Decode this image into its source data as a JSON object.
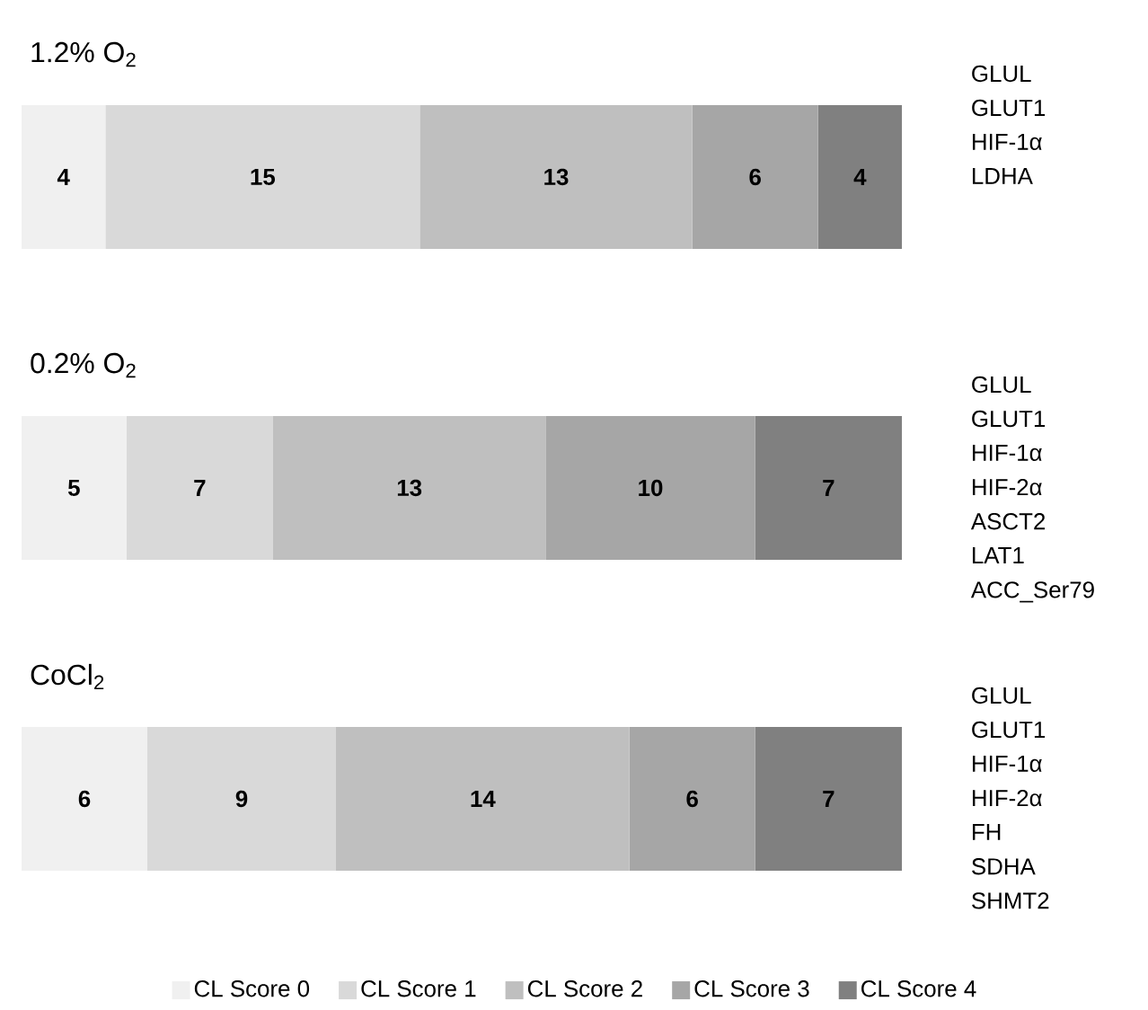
{
  "chart_data": [
    {
      "type": "bar",
      "orientation": "horizontal",
      "stacked": true,
      "title": "1.2% O$_{2}$",
      "categories": [
        null
      ],
      "tick_labels": false,
      "data_labels": true,
      "series": [
        {
          "color": "#f0f0f0",
          "values": [
            4
          ]
        },
        {
          "color": "#d9d9d9",
          "values": [
            15
          ]
        },
        {
          "color": "#bfbfbf",
          "values": [
            13
          ]
        },
        {
          "color": "#a6a6a6",
          "values": [
            6
          ]
        },
        {
          "color": "#808080",
          "values": [
            4
          ]
        }
      ],
      "annotations": [
        "GLUL",
        "GLUT1",
        "HIF-1α",
        "LDHA"
      ]
    },
    {
      "type": "bar",
      "orientation": "horizontal",
      "stacked": true,
      "title": "0.2% O$_{2}$",
      "categories": [
        null
      ],
      "tick_labels": false,
      "data_labels": true,
      "series": [
        {
          "color": "#f0f0f0",
          "values": [
            5
          ]
        },
        {
          "color": "#d9d9d9",
          "values": [
            7
          ]
        },
        {
          "color": "#bfbfbf",
          "values": [
            13
          ]
        },
        {
          "color": "#a6a6a6",
          "values": [
            10
          ]
        },
        {
          "color": "#808080",
          "values": [
            7
          ]
        }
      ],
      "annotations": [
        "GLUL",
        "GLUT1",
        "HIF-1α",
        "HIF-2α",
        "ASCT2",
        "LAT1",
        "ACC_Ser79"
      ]
    },
    {
      "type": "bar",
      "orientation": "horizontal",
      "stacked": true,
      "title": "CoCl$_{2}$",
      "categories": [
        null
      ],
      "tick_labels": false,
      "data_labels": true,
      "legend": "bottom",
      "series": [
        {
          "name": "CL Score 0",
          "color": "#f0f0f0",
          "values": [
            6
          ]
        },
        {
          "name": "CL Score 1",
          "color": "#d9d9d9",
          "values": [
            9
          ]
        },
        {
          "name": "CL Score 2",
          "color": "#bfbfbf",
          "values": [
            14
          ]
        },
        {
          "name": "CL Score 3",
          "color": "#a6a6a6",
          "values": [
            6
          ]
        },
        {
          "name": "CL Score 4",
          "color": "#808080",
          "values": [
            7
          ]
        }
      ],
      "annotations": [
        "GLUL",
        "GLUT1",
        "HIF-1α",
        "HIF-2α",
        "FH",
        "SDHA",
        "SHMT2"
      ]
    }
  ]
}
